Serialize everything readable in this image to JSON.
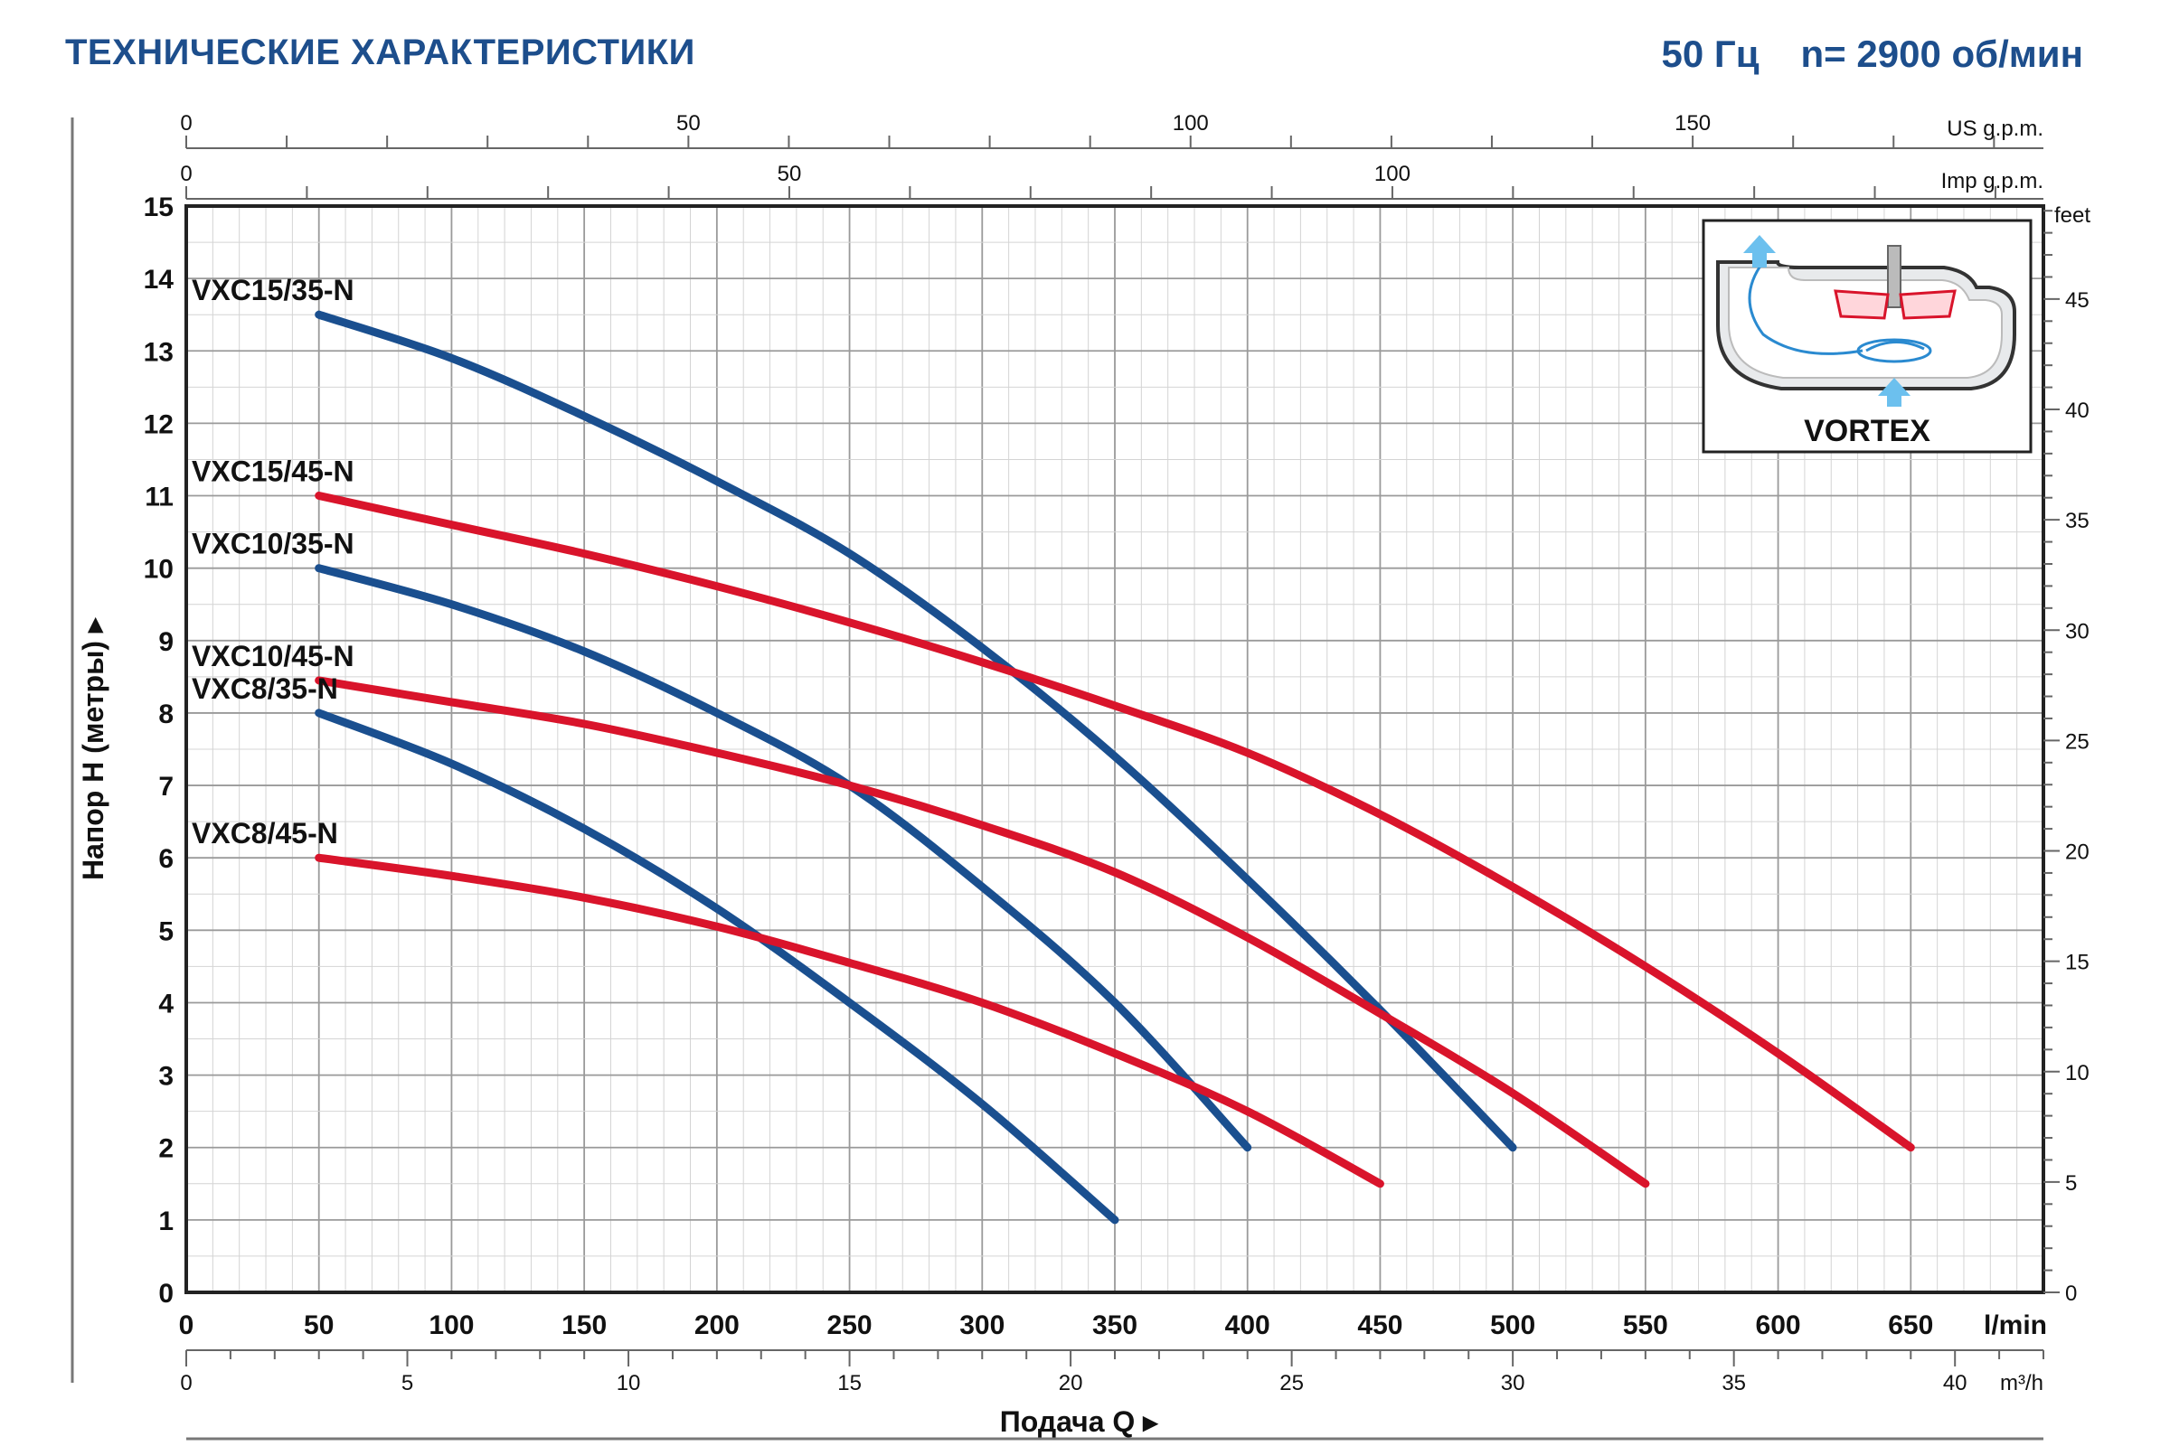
{
  "header": {
    "title": "ТЕХНИЧЕСКИЕ ХАРАКТЕРИСТИКИ",
    "frequency": "50 Гц",
    "speed": "n= 2900 об/мин"
  },
  "inset": {
    "label": "VORTEX",
    "icon": "vortex-impeller-icon"
  },
  "chart_data": {
    "type": "line",
    "xlabel": "Подача Q",
    "ylabel": "Напор H  (метры)",
    "xlim": [
      0,
      700
    ],
    "ylim": [
      0,
      15
    ],
    "x_unit": "l/min",
    "x_ticks": [
      0,
      50,
      100,
      150,
      200,
      250,
      300,
      350,
      400,
      450,
      500,
      550,
      600,
      650
    ],
    "y_ticks": [
      0,
      1,
      2,
      3,
      4,
      5,
      6,
      7,
      8,
      9,
      10,
      11,
      12,
      13,
      14,
      15
    ],
    "secondary_axes": {
      "us_gpm": {
        "unit": "US g.p.m.",
        "ticks": [
          0,
          50,
          100,
          150
        ]
      },
      "imp_gpm": {
        "unit": "Imp g.p.m.",
        "ticks": [
          0,
          50,
          100
        ]
      },
      "m3h": {
        "unit": "m³/h",
        "ticks": [
          0,
          5,
          10,
          15,
          20,
          25,
          30,
          35,
          40
        ]
      },
      "feet": {
        "unit": "feet",
        "ticks": [
          0,
          5,
          10,
          15,
          20,
          25,
          30,
          35,
          40,
          45
        ]
      }
    },
    "grid": true,
    "series": [
      {
        "name": "VXC15/35-N",
        "color": "#1a4f8f",
        "x": [
          50,
          100,
          150,
          200,
          250,
          300,
          350,
          400,
          450,
          500
        ],
        "y": [
          13.5,
          12.9,
          12.1,
          11.2,
          10.2,
          8.9,
          7.4,
          5.7,
          3.9,
          2.0
        ]
      },
      {
        "name": "VXC15/45-N",
        "color": "#d9142b",
        "x": [
          50,
          100,
          150,
          200,
          250,
          300,
          350,
          400,
          450,
          500,
          550,
          600,
          650
        ],
        "y": [
          11.0,
          10.6,
          10.2,
          9.75,
          9.25,
          8.7,
          8.1,
          7.45,
          6.6,
          5.6,
          4.5,
          3.3,
          2.0
        ]
      },
      {
        "name": "VXC10/35-N",
        "color": "#1a4f8f",
        "x": [
          50,
          100,
          150,
          200,
          250,
          300,
          350,
          400
        ],
        "y": [
          10.0,
          9.5,
          8.85,
          8.0,
          7.0,
          5.6,
          4.0,
          2.0
        ]
      },
      {
        "name": "VXC10/45-N",
        "color": "#d9142b",
        "x": [
          50,
          100,
          150,
          200,
          250,
          300,
          350,
          400,
          450,
          500,
          550
        ],
        "y": [
          8.45,
          8.15,
          7.85,
          7.45,
          7.0,
          6.45,
          5.8,
          4.9,
          3.85,
          2.75,
          1.5
        ]
      },
      {
        "name": "VXC8/35-N",
        "color": "#1a4f8f",
        "x": [
          50,
          100,
          150,
          200,
          250,
          300,
          350
        ],
        "y": [
          8.0,
          7.3,
          6.4,
          5.3,
          4.0,
          2.6,
          1.0
        ]
      },
      {
        "name": "VXC8/45-N",
        "color": "#d9142b",
        "x": [
          50,
          100,
          150,
          200,
          250,
          300,
          350,
          400,
          450
        ],
        "y": [
          6.0,
          5.75,
          5.45,
          5.05,
          4.55,
          4.0,
          3.3,
          2.5,
          1.5
        ]
      }
    ]
  }
}
